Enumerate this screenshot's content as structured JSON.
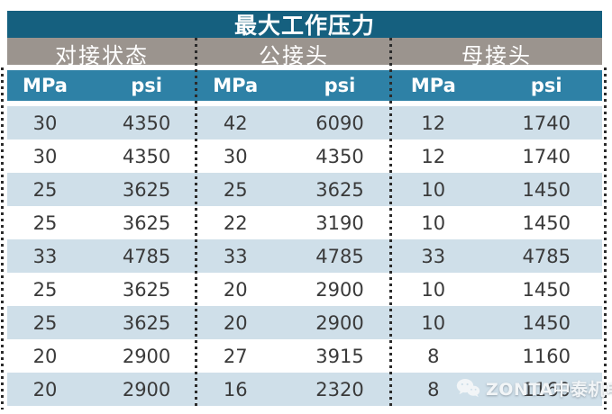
{
  "units": {
    "mpa": "MPa",
    "psi": "psi"
  },
  "watermark": {
    "text": "ZONTA中泰机电",
    "icon": "wechat-icon"
  },
  "colors": {
    "title_bar": "#15607f",
    "group_bar": "#9b948e",
    "unit_bar": "#2e81a6",
    "row_alt": "#cfdfe9",
    "row_plain": "#ffffff",
    "data_text": "#3a3a3a",
    "dotted_line": "#2b2b2b"
  },
  "chart_data": {
    "type": "table",
    "title": "最大工作压力",
    "column_groups": [
      "对接状态",
      "公接头",
      "母接头"
    ],
    "columns": [
      "对接状态 MPa",
      "对接状态 psi",
      "公接头 MPa",
      "公接头 psi",
      "母接头 MPa",
      "母接头 psi"
    ],
    "rows": [
      [
        30,
        4350,
        42,
        6090,
        12,
        1740
      ],
      [
        30,
        4350,
        30,
        4350,
        12,
        1740
      ],
      [
        25,
        3625,
        25,
        3625,
        10,
        1450
      ],
      [
        25,
        3625,
        22,
        3190,
        10,
        1450
      ],
      [
        33,
        4785,
        33,
        4785,
        33,
        4785
      ],
      [
        25,
        3625,
        20,
        2900,
        10,
        1450
      ],
      [
        25,
        3625,
        20,
        2900,
        10,
        1450
      ],
      [
        20,
        2900,
        27,
        3915,
        8,
        1160
      ],
      [
        20,
        2900,
        16,
        2320,
        8,
        1160
      ]
    ]
  }
}
